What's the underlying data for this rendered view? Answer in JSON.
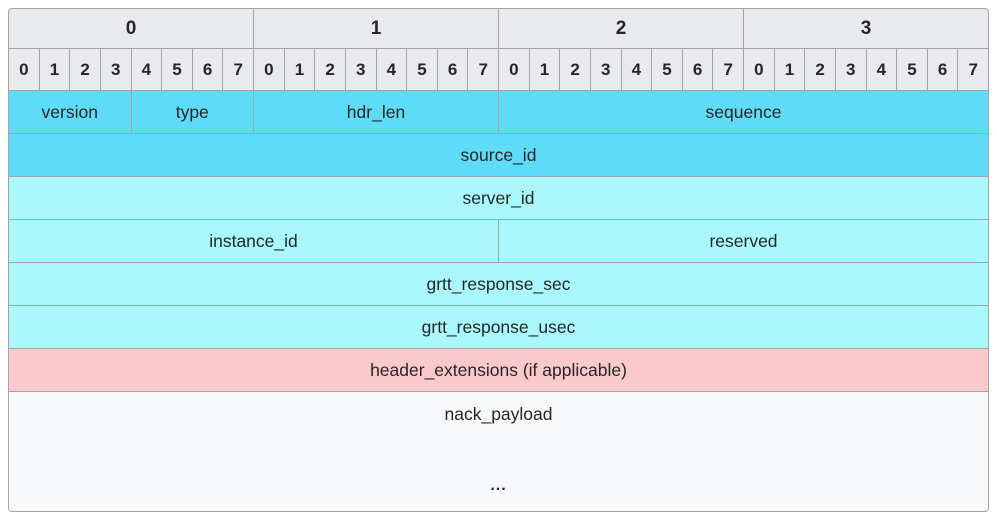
{
  "colors": {
    "header_bg": "#e9eaee",
    "grid_line": "#a3a3a3",
    "dark_cyan": "#5edcf7",
    "light_cyan": "#a9f8fd",
    "pink": "#f9c9cc",
    "payload_bg": "#f7f8fa",
    "text": "#262626"
  },
  "byte_labels": [
    "0",
    "1",
    "2",
    "3"
  ],
  "bit_labels": [
    "0",
    "1",
    "2",
    "3",
    "4",
    "5",
    "6",
    "7",
    "0",
    "1",
    "2",
    "3",
    "4",
    "5",
    "6",
    "7",
    "0",
    "1",
    "2",
    "3",
    "4",
    "5",
    "6",
    "7",
    "0",
    "1",
    "2",
    "3",
    "4",
    "5",
    "6",
    "7"
  ],
  "rows": [
    {
      "color": "dark_cyan",
      "fields": [
        {
          "label": "version",
          "span": 4
        },
        {
          "label": "type",
          "span": 4
        },
        {
          "label": "hdr_len",
          "span": 8
        },
        {
          "label": "sequence",
          "span": 16
        }
      ]
    },
    {
      "color": "dark_cyan",
      "fields": [
        {
          "label": "source_id",
          "span": 32
        }
      ]
    },
    {
      "color": "light_cyan",
      "fields": [
        {
          "label": "server_id",
          "span": 32
        }
      ]
    },
    {
      "color": "light_cyan",
      "fields": [
        {
          "label": "instance_id",
          "span": 16
        },
        {
          "label": "reserved",
          "span": 16
        }
      ]
    },
    {
      "color": "light_cyan",
      "fields": [
        {
          "label": "grtt_response_sec",
          "span": 32
        }
      ]
    },
    {
      "color": "light_cyan",
      "fields": [
        {
          "label": "grtt_response_usec",
          "span": 32
        }
      ]
    },
    {
      "color": "pink",
      "fields": [
        {
          "label": "header_extensions (if applicable)",
          "span": 32
        }
      ]
    }
  ],
  "payload": {
    "label": "nack_payload",
    "ellipsis": "...",
    "color": "payload_bg"
  }
}
